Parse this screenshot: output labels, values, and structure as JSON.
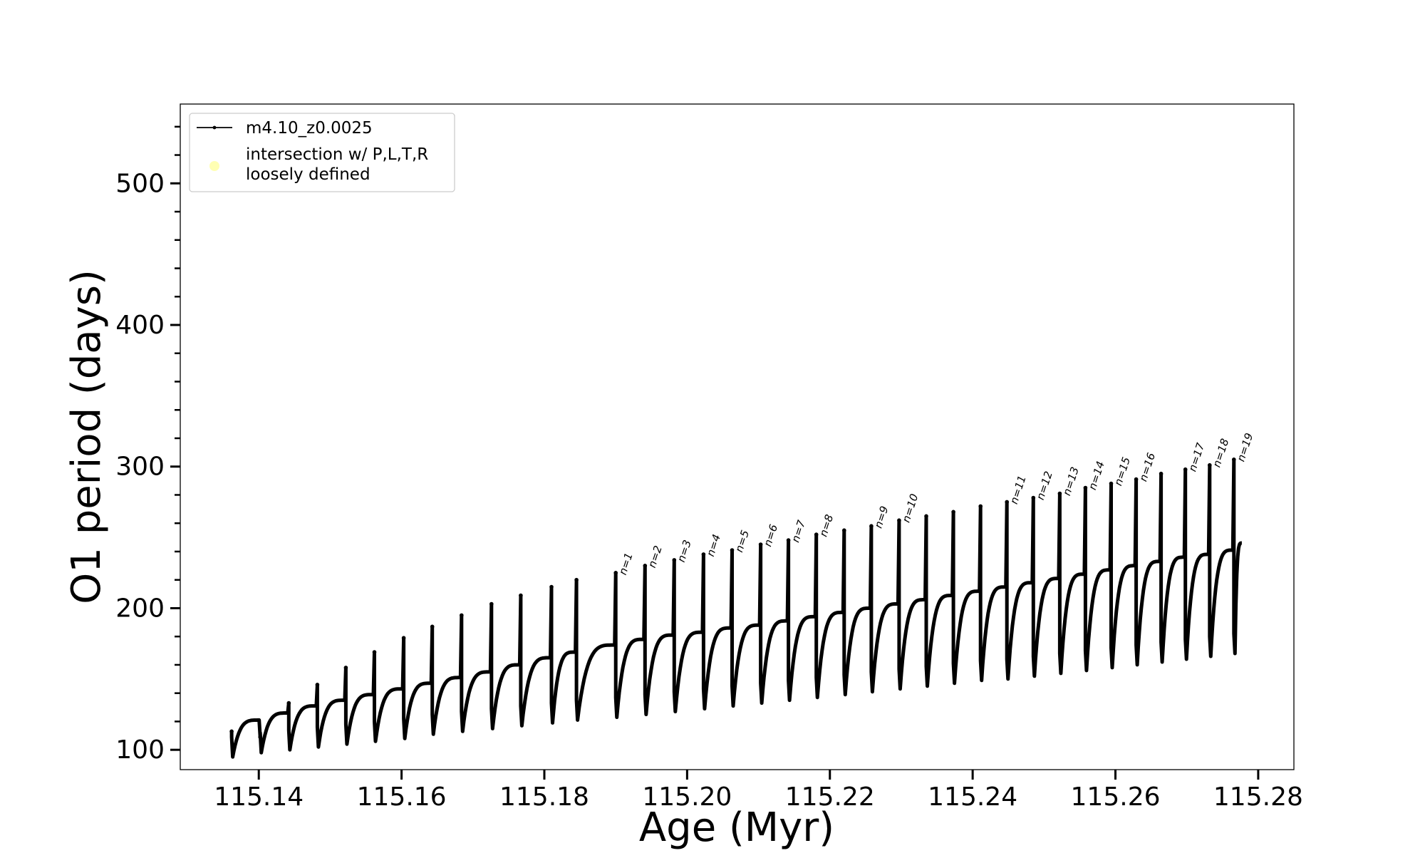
{
  "chart_data": {
    "type": "line",
    "xlabel": "Age (Myr)",
    "ylabel": "O1 period (days)",
    "xlim": [
      115.129,
      115.285
    ],
    "ylim": [
      86,
      556
    ],
    "x_ticks": [
      115.14,
      115.16,
      115.18,
      115.2,
      115.22,
      115.24,
      115.26,
      115.28
    ],
    "x_tick_labels": [
      "115.14",
      "115.16",
      "115.18",
      "115.20",
      "115.22",
      "115.24",
      "115.26",
      "115.28"
    ],
    "y_ticks": [
      100,
      200,
      300,
      400,
      500
    ],
    "y_tick_labels": [
      "100",
      "200",
      "300",
      "400",
      "500"
    ],
    "grid": false,
    "legend": {
      "placement": "top-left",
      "entries": [
        {
          "label": "m4.10_z0.0025",
          "marker": "line-dot",
          "color": "#000000"
        },
        {
          "label": "intersection w/ P,L,T,R\nloosely defined",
          "marker": "circle",
          "color": "#ffff99"
        }
      ]
    },
    "series": [
      {
        "name": "m4.10_z0.0025",
        "color": "#000000",
        "end": [
          115.2777,
          246
        ],
        "cycles": [
          {
            "x": 115.1362,
            "top": 113,
            "dip": 95,
            "plateau": 121
          },
          {
            "x": 115.1402,
            "top": 109,
            "dip": 98,
            "plateau": 126
          },
          {
            "x": 115.1442,
            "top": 133,
            "dip": 100,
            "plateau": 131
          },
          {
            "x": 115.1482,
            "top": 146,
            "dip": 102,
            "plateau": 135
          },
          {
            "x": 115.1522,
            "top": 158,
            "dip": 104,
            "plateau": 139
          },
          {
            "x": 115.1562,
            "top": 169,
            "dip": 106,
            "plateau": 143
          },
          {
            "x": 115.1603,
            "top": 179,
            "dip": 108,
            "plateau": 147
          },
          {
            "x": 115.1643,
            "top": 187,
            "dip": 111,
            "plateau": 151
          },
          {
            "x": 115.1684,
            "top": 195,
            "dip": 113,
            "plateau": 155
          },
          {
            "x": 115.1726,
            "top": 203,
            "dip": 115,
            "plateau": 160
          },
          {
            "x": 115.1767,
            "top": 209,
            "dip": 117,
            "plateau": 165
          },
          {
            "x": 115.181,
            "top": 215,
            "dip": 119,
            "plateau": 169
          },
          {
            "x": 115.1845,
            "top": 220,
            "dip": 121,
            "plateau": 174
          },
          {
            "x": 115.19,
            "top": 225,
            "dip": 123,
            "plateau": 178
          },
          {
            "x": 115.1941,
            "top": 230,
            "dip": 125,
            "plateau": 181
          },
          {
            "x": 115.1982,
            "top": 234,
            "dip": 127,
            "plateau": 183
          },
          {
            "x": 115.2023,
            "top": 238,
            "dip": 129,
            "plateau": 186
          },
          {
            "x": 115.2063,
            "top": 241,
            "dip": 131,
            "plateau": 188
          },
          {
            "x": 115.2103,
            "top": 245,
            "dip": 133,
            "plateau": 191
          },
          {
            "x": 115.2142,
            "top": 248,
            "dip": 135,
            "plateau": 194
          },
          {
            "x": 115.2181,
            "top": 252,
            "dip": 137,
            "plateau": 197
          },
          {
            "x": 115.222,
            "top": 255,
            "dip": 139,
            "plateau": 200
          },
          {
            "x": 115.2258,
            "top": 258,
            "dip": 141,
            "plateau": 203
          },
          {
            "x": 115.2297,
            "top": 262,
            "dip": 143,
            "plateau": 206
          },
          {
            "x": 115.2335,
            "top": 265,
            "dip": 145,
            "plateau": 209
          },
          {
            "x": 115.2373,
            "top": 268,
            "dip": 147,
            "plateau": 212
          },
          {
            "x": 115.2411,
            "top": 272,
            "dip": 149,
            "plateau": 215
          },
          {
            "x": 115.2448,
            "top": 275,
            "dip": 150,
            "plateau": 218
          },
          {
            "x": 115.2485,
            "top": 278,
            "dip": 152,
            "plateau": 221
          },
          {
            "x": 115.2522,
            "top": 281,
            "dip": 154,
            "plateau": 224
          },
          {
            "x": 115.2558,
            "top": 285,
            "dip": 156,
            "plateau": 227
          },
          {
            "x": 115.2594,
            "top": 288,
            "dip": 158,
            "plateau": 230
          },
          {
            "x": 115.2629,
            "top": 291,
            "dip": 160,
            "plateau": 233
          },
          {
            "x": 115.2664,
            "top": 295,
            "dip": 162,
            "plateau": 236
          },
          {
            "x": 115.2698,
            "top": 298,
            "dip": 164,
            "plateau": 238
          },
          {
            "x": 115.2732,
            "top": 301,
            "dip": 166,
            "plateau": 241
          },
          {
            "x": 115.2766,
            "top": 305,
            "dip": 168,
            "plateau": 243
          }
        ]
      }
    ],
    "annotations": [
      {
        "text": "n=1",
        "x": 115.19,
        "y": 225
      },
      {
        "text": "n=2",
        "x": 115.1941,
        "y": 230
      },
      {
        "text": "n=3",
        "x": 115.1982,
        "y": 234
      },
      {
        "text": "n=4",
        "x": 115.2023,
        "y": 238
      },
      {
        "text": "n=5",
        "x": 115.2063,
        "y": 241
      },
      {
        "text": "n=6",
        "x": 115.2103,
        "y": 245
      },
      {
        "text": "n=7",
        "x": 115.2142,
        "y": 248
      },
      {
        "text": "n=8",
        "x": 115.2181,
        "y": 252
      },
      {
        "text": "n=9",
        "x": 115.2258,
        "y": 258
      },
      {
        "text": "n=10",
        "x": 115.2297,
        "y": 262
      },
      {
        "text": "n=11",
        "x": 115.2448,
        "y": 275
      },
      {
        "text": "n=12",
        "x": 115.2485,
        "y": 278
      },
      {
        "text": "n=13",
        "x": 115.2522,
        "y": 281
      },
      {
        "text": "n=14",
        "x": 115.2558,
        "y": 285
      },
      {
        "text": "n=15",
        "x": 115.2594,
        "y": 288
      },
      {
        "text": "n=16",
        "x": 115.2629,
        "y": 291
      },
      {
        "text": "n=17",
        "x": 115.2698,
        "y": 298
      },
      {
        "text": "n=18",
        "x": 115.2732,
        "y": 301
      },
      {
        "text": "n=19",
        "x": 115.2766,
        "y": 305
      }
    ]
  }
}
